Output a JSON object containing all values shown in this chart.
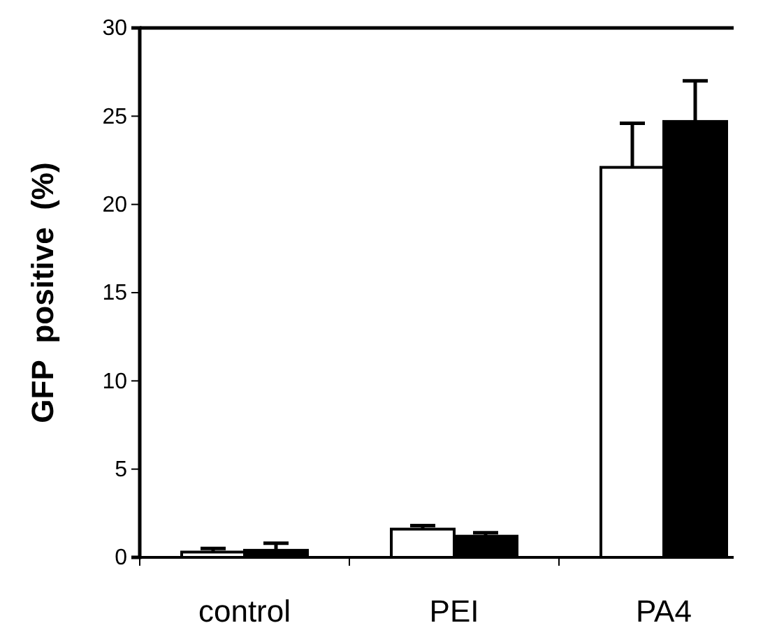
{
  "chart_data": {
    "type": "bar",
    "ylabel": "GFP  positive  (%)",
    "categories": [
      "control",
      "PEI",
      "PA4"
    ],
    "series": [
      {
        "color": "#ffffff",
        "values": [
          0.3,
          1.6,
          22.1
        ],
        "errors": [
          [
            0.3,
            0.5
          ],
          [
            1.6,
            1.8
          ],
          [
            22.1,
            24.6
          ]
        ]
      },
      {
        "color": "#000000",
        "values": [
          0.4,
          1.2,
          24.7
        ],
        "errors": [
          [
            0.4,
            0.8
          ],
          [
            1.2,
            1.4
          ],
          [
            24.7,
            27.0
          ]
        ]
      }
    ],
    "ylim": [
      0,
      30
    ],
    "yticks": [
      0,
      5,
      10,
      15,
      20,
      25,
      30
    ],
    "grid": false
  }
}
